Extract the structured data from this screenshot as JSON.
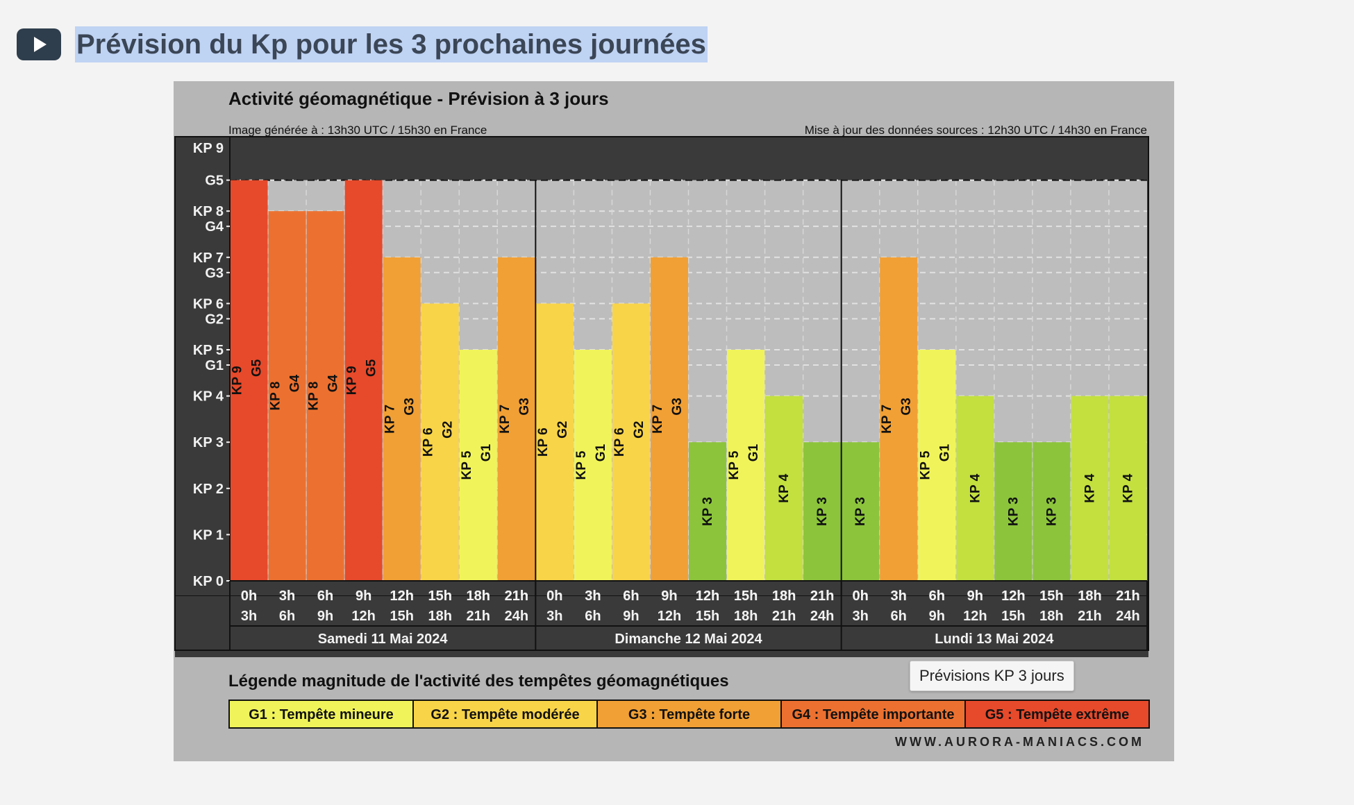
{
  "page": {
    "title": "Prévision du Kp pour les 3 prochaines journées",
    "play_icon": "play-icon",
    "tooltip": "Prévisions KP 3 jours"
  },
  "chart_data": {
    "type": "bar",
    "title": "Activité géomagnétique - Prévision à 3 jours",
    "subtitle_left": "Image générée à : 13h30 UTC / 15h30 en France",
    "subtitle_right": "Mise à jour des données sources : 12h30 UTC / 14h30 en France",
    "ylim": [
      0,
      9
    ],
    "y_ticks": [
      {
        "label": "KP 0",
        "value": 0
      },
      {
        "label": "KP 1",
        "value": 1
      },
      {
        "label": "KP 2",
        "value": 2
      },
      {
        "label": "KP 3",
        "value": 3
      },
      {
        "label": "KP 4",
        "value": 4
      },
      {
        "label": "G1",
        "value": 4.67
      },
      {
        "label": "KP 5",
        "value": 5
      },
      {
        "label": "G2",
        "value": 5.67
      },
      {
        "label": "KP 6",
        "value": 6
      },
      {
        "label": "G3",
        "value": 6.67
      },
      {
        "label": "KP 7",
        "value": 7
      },
      {
        "label": "G4",
        "value": 7.67
      },
      {
        "label": "KP 8",
        "value": 8
      },
      {
        "label": "G5",
        "value": 8.67
      },
      {
        "label": "KP 9",
        "value": 9
      }
    ],
    "categories_top": [
      "0h",
      "3h",
      "6h",
      "9h",
      "12h",
      "15h",
      "18h",
      "21h",
      "0h",
      "3h",
      "6h",
      "9h",
      "12h",
      "15h",
      "18h",
      "21h",
      "0h",
      "3h",
      "6h",
      "9h",
      "12h",
      "15h",
      "18h",
      "21h"
    ],
    "categories_bottom": [
      "3h",
      "6h",
      "9h",
      "12h",
      "15h",
      "18h",
      "21h",
      "24h",
      "3h",
      "6h",
      "9h",
      "12h",
      "15h",
      "18h",
      "21h",
      "24h",
      "3h",
      "6h",
      "9h",
      "12h",
      "15h",
      "18h",
      "21h",
      "24h"
    ],
    "days": [
      "Samedi 11 Mai 2024",
      "Dimanche 12 Mai 2024",
      "Lundi 13 Mai 2024"
    ],
    "values": [
      9,
      8,
      8,
      9,
      7,
      6,
      5,
      7,
      6,
      5,
      6,
      7,
      3,
      5,
      4,
      3,
      3,
      7,
      5,
      4,
      3,
      3,
      4,
      4
    ],
    "bar_labels": [
      "KP 9",
      "KP 8",
      "KP 8",
      "KP 9",
      "KP 7",
      "KP 6",
      "KP 5",
      "KP 7",
      "KP 6",
      "KP 5",
      "KP 6",
      "KP 7",
      "KP 3",
      "KP 5",
      "KP 4",
      "KP 3",
      "KP 3",
      "KP 7",
      "KP 5",
      "KP 4",
      "KP 3",
      "KP 3",
      "KP 4",
      "KP 4"
    ],
    "storm_labels": [
      "G5",
      "G4",
      "G4",
      "G5",
      "G3",
      "G2",
      "G1",
      "G3",
      "G2",
      "G1",
      "G2",
      "G3",
      "",
      "G1",
      "",
      "",
      "",
      "G3",
      "G1",
      "",
      "",
      "",
      "",
      ""
    ],
    "level_colors": {
      "3": "#8cc43c",
      "4": "#c3e03f",
      "5": "#f0f45a",
      "6": "#f8d448",
      "7": "#f1a035",
      "8": "#ec7130",
      "9": "#e64a2b"
    },
    "legend_title": "Légende magnitude de l'activité des tempêtes géomagnétiques",
    "legend": [
      {
        "label": "G1 : Tempête mineure",
        "color": "#f0f45a"
      },
      {
        "label": "G2 : Tempête modérée",
        "color": "#f8d448"
      },
      {
        "label": "G3 : Tempête forte",
        "color": "#f1a035"
      },
      {
        "label": "G4 : Tempête importante",
        "color": "#ec7130"
      },
      {
        "label": "G5 : Tempête extrême",
        "color": "#e64a2b"
      }
    ],
    "watermark": "WWW.AURORA-MANIACS.COM"
  }
}
